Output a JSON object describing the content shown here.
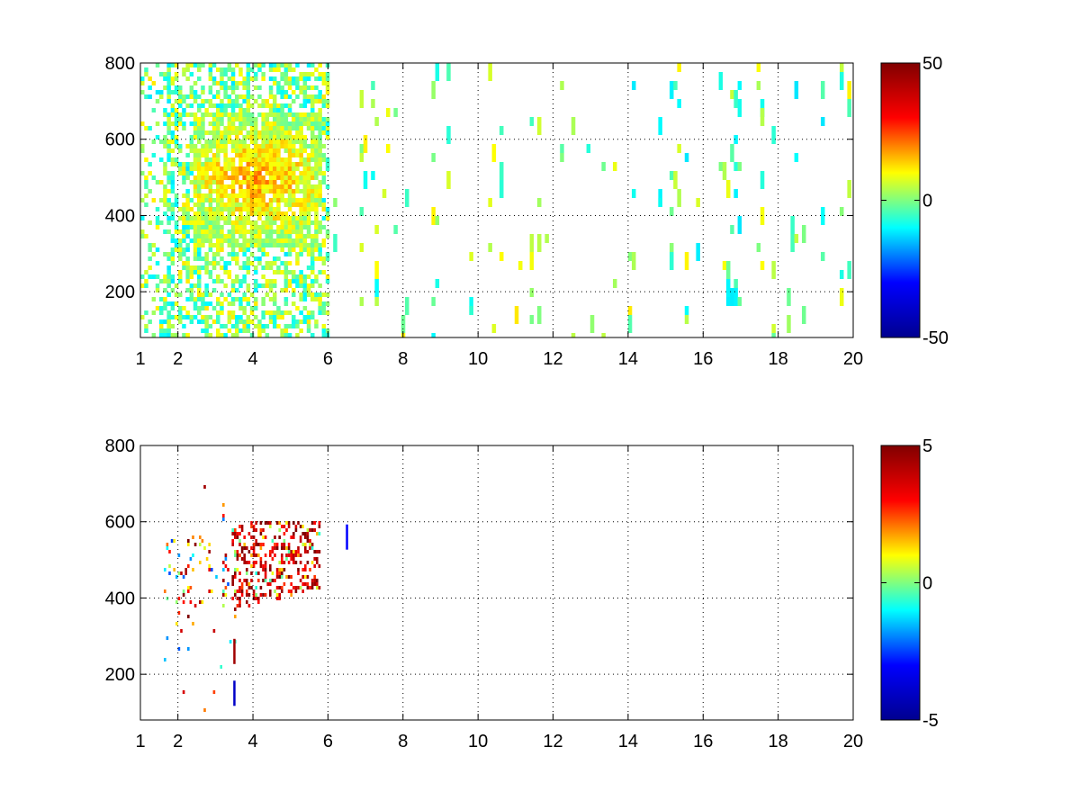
{
  "chart_data": [
    {
      "type": "heatmap",
      "title": "",
      "xlabel": "",
      "ylabel": "",
      "xlim": [
        1,
        20
      ],
      "ylim": [
        80,
        800
      ],
      "x_ticks": [
        "1",
        "2",
        "4",
        "6",
        "8",
        "10",
        "12",
        "14",
        "16",
        "18",
        "20"
      ],
      "x_tick_values": [
        1,
        2,
        4,
        6,
        8,
        10,
        12,
        14,
        16,
        18,
        20
      ],
      "y_ticks": [
        "200",
        "400",
        "600",
        "800"
      ],
      "y_tick_values": [
        200,
        400,
        600,
        800
      ],
      "grid": "dotted",
      "colormap": "jet",
      "colormap_colors": [
        "#00008f",
        "#0000ff",
        "#00ffff",
        "#ffff00",
        "#ff0000",
        "#800000"
      ],
      "colorbar": {
        "min": -50,
        "max": 50,
        "tick_labels": [
          "50",
          "0",
          "-50"
        ],
        "tick_values": [
          50,
          0,
          -50
        ]
      },
      "pattern": {
        "description_of_values": "sparse scattered cells, dense and near-zero (cyan to yellow) for x < 6, strongest around x 2.5-5.5 and y 350-650 reaching ~ +20, sparse narrow columns beyond x 6",
        "dense_region": {
          "x": [
            1,
            6
          ],
          "y": [
            80,
            800
          ]
        },
        "hot_region": {
          "x": [
            2.4,
            5.8
          ],
          "y": [
            320,
            680
          ],
          "peak_value": 22
        },
        "sparse_region": {
          "x": [
            6,
            20
          ],
          "y": [
            80,
            800
          ]
        },
        "typical_value_range": [
          -15,
          15
        ]
      }
    },
    {
      "type": "heatmap",
      "title": "",
      "xlabel": "",
      "ylabel": "",
      "xlim": [
        1,
        20
      ],
      "ylim": [
        80,
        800
      ],
      "x_ticks": [
        "1",
        "2",
        "4",
        "6",
        "8",
        "10",
        "12",
        "14",
        "16",
        "18",
        "20"
      ],
      "x_tick_values": [
        1,
        2,
        4,
        6,
        8,
        10,
        12,
        14,
        16,
        18,
        20
      ],
      "y_ticks": [
        "200",
        "400",
        "600",
        "800"
      ],
      "y_tick_values": [
        200,
        400,
        600,
        800
      ],
      "grid": "dotted",
      "colormap": "jet",
      "colormap_colors": [
        "#00008f",
        "#0000ff",
        "#00ffff",
        "#ffff00",
        "#ff0000",
        "#800000"
      ],
      "colorbar": {
        "min": -5,
        "max": 5,
        "tick_labels": [
          "5",
          "0",
          "-5"
        ],
        "tick_values": [
          5,
          0,
          -5
        ]
      },
      "pattern": {
        "description_of_values": "mostly empty; cluster of strongly positive (red/dark red) cells at x 3.5-5.8, y 380-600, a few scattered cells x 1.5-3.5",
        "hot_region": {
          "x": [
            3.4,
            5.8
          ],
          "y": [
            380,
            610
          ],
          "peak_value": 5
        },
        "scatter_region": {
          "x": [
            1.6,
            3.5
          ],
          "y": [
            90,
            720
          ]
        },
        "isolated_points": [
          {
            "x": 3.5,
            "y": 150,
            "value": -4
          },
          {
            "x": 3.5,
            "y": 260,
            "value": 4.5
          },
          {
            "x": 6.5,
            "y": 560,
            "value": -3
          }
        ]
      }
    }
  ]
}
